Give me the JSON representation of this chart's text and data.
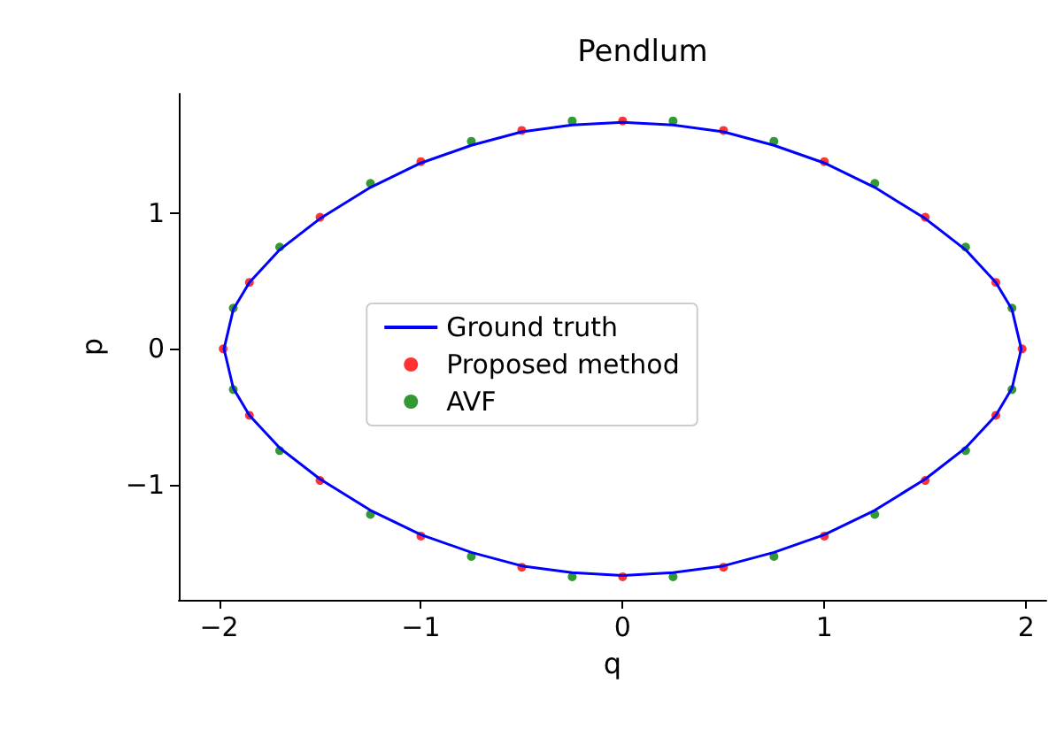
{
  "chart_data": {
    "type": "scatter",
    "title": "Pendlum",
    "xlabel": "q",
    "ylabel": "p",
    "xlim": [
      -2.2,
      2.1
    ],
    "ylim": [
      -1.85,
      1.88
    ],
    "xticks": [
      -2,
      -1,
      0,
      1,
      2
    ],
    "yticks": [
      -1,
      0,
      1
    ],
    "grid": false,
    "legend": "center",
    "marker": "circle",
    "series": [
      {
        "name": "Ground truth",
        "type": "line",
        "color": "#0000ff",
        "line_style": "solid",
        "marker": "none",
        "x": [
          -1.976,
          -1.93,
          -1.85,
          -1.7,
          -1.5,
          -1.25,
          -1,
          -0.75,
          -0.5,
          -0.25,
          0,
          0.25,
          0.5,
          0.75,
          1,
          1.25,
          1.5,
          1.7,
          1.85,
          1.93,
          1.976,
          null,
          -1.976,
          -1.93,
          -1.85,
          -1.7,
          -1.5,
          -1.25,
          -1,
          -0.75,
          -0.5,
          -0.25,
          0,
          0.25,
          0.5,
          0.75,
          1,
          1.25,
          1.5,
          1.7,
          1.85,
          1.93,
          1.976
        ],
        "values": [
          0,
          0.29,
          0.49,
          0.73,
          0.96,
          1.19,
          1.37,
          1.5,
          1.6,
          1.65,
          1.67,
          1.65,
          1.6,
          1.5,
          1.37,
          1.19,
          0.96,
          0.73,
          0.49,
          0.29,
          0,
          null,
          0,
          -0.29,
          -0.49,
          -0.73,
          -0.96,
          -1.19,
          -1.37,
          -1.5,
          -1.6,
          -1.65,
          -1.67,
          -1.65,
          -1.6,
          -1.5,
          -1.37,
          -1.19,
          -0.96,
          -0.73,
          -0.49,
          -0.29,
          0
        ]
      },
      {
        "name": "Proposed method",
        "color": "#ff0000",
        "x": [
          -1.98,
          -1.85,
          -1.5,
          -1,
          -0.5,
          0,
          0.5,
          1,
          1.5,
          1.85,
          1.98,
          1.85,
          1.5,
          1,
          0.5,
          0,
          -0.5,
          -1,
          -1.5,
          -1.85
        ],
        "values": [
          0,
          0.49,
          0.97,
          1.38,
          1.61,
          1.68,
          1.61,
          1.38,
          0.97,
          0.49,
          0,
          -0.49,
          -0.97,
          -1.38,
          -1.61,
          -1.68,
          -1.61,
          -1.38,
          -0.97,
          -0.49
        ]
      },
      {
        "name": "AVF",
        "color": "#008000",
        "x": [
          -1.93,
          -1.7,
          -1.25,
          -0.75,
          -0.25,
          0.25,
          0.75,
          1.25,
          1.7,
          1.93,
          1.93,
          1.7,
          1.25,
          0.75,
          0.25,
          -0.25,
          -0.75,
          -1.25,
          -1.7,
          -1.93
        ],
        "values": [
          0.3,
          0.75,
          1.22,
          1.53,
          1.68,
          1.68,
          1.53,
          1.22,
          0.75,
          0.3,
          -0.3,
          -0.75,
          -1.22,
          -1.53,
          -1.68,
          -1.68,
          -1.53,
          -1.22,
          -0.75,
          -0.3
        ]
      }
    ]
  }
}
